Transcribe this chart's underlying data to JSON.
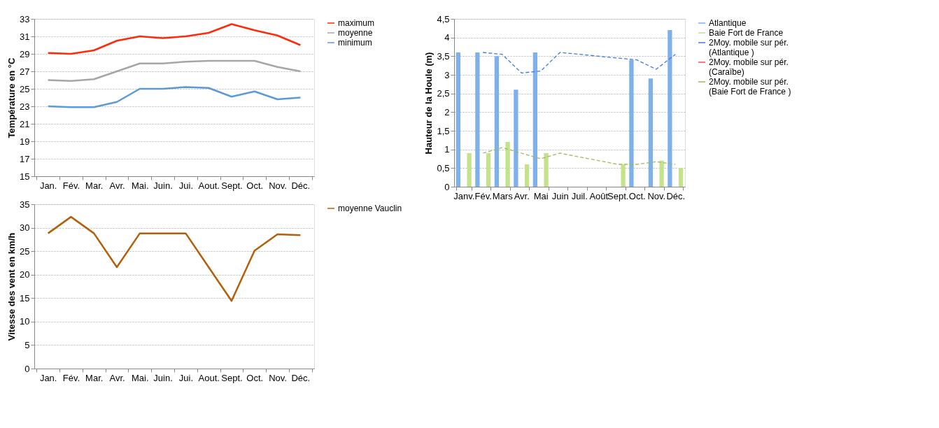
{
  "chart_data": [
    {
      "type": "line",
      "ylabel": "Température en °C",
      "categories": [
        "Jan.",
        "Fév.",
        "Mar.",
        "Avr.",
        "Mai.",
        "Juin.",
        "Jui.",
        "Aout.",
        "Sept.",
        "Oct.",
        "Nov.",
        "Déc."
      ],
      "ylim": [
        15,
        33
      ],
      "yticks": [
        15,
        17,
        19,
        21,
        23,
        25,
        27,
        29,
        31,
        33
      ],
      "grid": "y",
      "legend": "right",
      "series": [
        {
          "name": "maximum",
          "color": "#ff2a0a",
          "values": [
            29.1,
            29.0,
            29.4,
            30.5,
            31.0,
            30.8,
            31.0,
            31.4,
            32.4,
            31.7,
            31.1,
            30.0
          ]
        },
        {
          "name": "moyenne",
          "color": "#a6a6a6",
          "values": [
            26.0,
            25.9,
            26.1,
            27.0,
            27.9,
            27.9,
            28.1,
            28.2,
            28.2,
            28.2,
            27.5,
            27.0
          ]
        },
        {
          "name": "minimum",
          "color": "#5b9bd5",
          "values": [
            23.0,
            22.9,
            22.9,
            23.5,
            25.0,
            25.0,
            25.2,
            25.1,
            24.1,
            24.7,
            23.8,
            24.0
          ]
        }
      ]
    },
    {
      "type": "line",
      "ylabel": "Vitesse des vent en km/h",
      "categories": [
        "Jan.",
        "Fév.",
        "Mar.",
        "Avr.",
        "Mai.",
        "Juin.",
        "Jui.",
        "Aout.",
        "Sept.",
        "Oct.",
        "Nov.",
        "Déc."
      ],
      "ylim": [
        0,
        35
      ],
      "yticks": [
        0,
        5,
        10,
        15,
        20,
        25,
        30,
        35
      ],
      "grid": "y",
      "legend": "right",
      "series": [
        {
          "name": "moyenne Vauclin",
          "color": "#b35f0a",
          "values": [
            28.8,
            32.3,
            28.8,
            21.6,
            28.8,
            28.8,
            28.8,
            21.6,
            14.4,
            25.1,
            28.6,
            28.4
          ]
        }
      ]
    },
    {
      "type": "bar",
      "ylabel": "Hauteur de la Houle (m)",
      "categories": [
        "Janv.",
        "Fév.",
        "Mars",
        "Avr.",
        "Mai",
        "Juin",
        "Juil.",
        "Août",
        "Sept.",
        "Oct.",
        "Nov.",
        "Déc."
      ],
      "ylim": [
        0,
        4.5
      ],
      "yticks": [
        0,
        {
          "value": 0.5,
          "label": "0,5"
        },
        1,
        {
          "value": 1.5,
          "label": "1,5"
        },
        2,
        {
          "value": 2.5,
          "label": "2,5"
        },
        3,
        {
          "value": 3.5,
          "label": "3,5"
        },
        4,
        {
          "value": 4.5,
          "label": "4,5"
        }
      ],
      "grid": "y",
      "legend": "right",
      "series": [
        {
          "name": "Atlantique",
          "color": "#7eb0ea",
          "values": [
            3.6,
            3.6,
            3.5,
            2.6,
            3.6,
            null,
            null,
            null,
            null,
            3.4,
            2.9,
            4.2
          ]
        },
        {
          "name": "Baie Fort de France",
          "color": "#c3e28a",
          "values": [
            0.9,
            0.9,
            1.2,
            0.6,
            0.9,
            null,
            null,
            null,
            0.6,
            null,
            0.7,
            0.5
          ]
        },
        {
          "name": "2Moy. mobile sur pér. (Atlantique )",
          "type": "line",
          "line_style": "dashed",
          "color": "#3d7ae8",
          "values": [
            null,
            3.6,
            3.55,
            3.05,
            3.1,
            3.6,
            null,
            null,
            null,
            3.4,
            3.15,
            3.55
          ]
        },
        {
          "name": "2Moy. mobile sur pér. (Caraïbe)",
          "type": "line",
          "line_style": "dashed",
          "color": "#e85050",
          "values": [
            null,
            null,
            null,
            null,
            null,
            null,
            null,
            null,
            null,
            null,
            null,
            null
          ]
        },
        {
          "name": "2Moy. mobile sur pér. (Baie Fort de France )",
          "type": "line",
          "line_style": "dashed",
          "color": "#9bbb59",
          "values": [
            null,
            0.9,
            1.05,
            0.9,
            0.75,
            0.9,
            null,
            null,
            0.6,
            0.6,
            0.67,
            0.6
          ]
        }
      ]
    }
  ]
}
